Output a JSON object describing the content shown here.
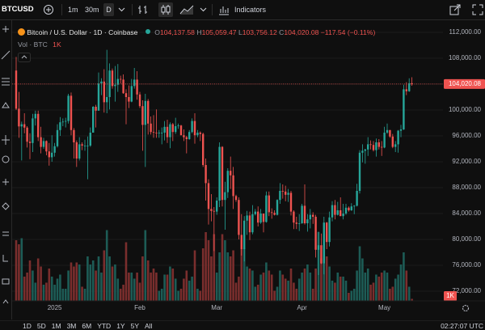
{
  "ui": {
    "symbol": "BTCUSD",
    "intervals": [
      "1m",
      "30m",
      "D"
    ],
    "indicators": "Indicators",
    "ranges": [
      "1D",
      "5D",
      "1M",
      "3M",
      "6M",
      "YTD",
      "1Y",
      "5Y",
      "All"
    ],
    "clock": "02:27:07 UTC"
  },
  "chart_data": {
    "type": "candlestick",
    "ohlc_prefixes": [
      "O",
      "H",
      "L",
      "C"
    ],
    "last_labels": {
      "open": "104,137.58",
      "high": "105,059.47",
      "low": "103,756.12",
      "close": "104,020.08"
    },
    "change": {
      "value": -117.54,
      "label": "−117.54"
    },
    "change_percent": {
      "value": -0.11,
      "label": "(−0.11%)"
    },
    "grid": true,
    "ylim": [
      70500,
      113250
    ],
    "yticks": [
      {
        "value": 72000,
        "label": "72,000.00"
      },
      {
        "value": 76000,
        "label": "76,000.00"
      },
      {
        "value": 80000,
        "label": "80,000.00"
      },
      {
        "value": 84000,
        "label": "84,000.00"
      },
      {
        "value": 88000,
        "label": "88,000.00"
      },
      {
        "value": 92000,
        "label": "92,000.00"
      },
      {
        "value": 96000,
        "label": "96,000.00"
      },
      {
        "value": 100000,
        "label": "100,000.00"
      },
      {
        "value": 104000,
        "label": "104,000.00"
      },
      {
        "value": 108000,
        "label": "108,000.00"
      },
      {
        "value": 112000,
        "label": "112,000.00"
      }
    ],
    "y2lim": [
      0,
      40000
    ],
    "categories": [
      null,
      null,
      null,
      null,
      null,
      null,
      null,
      null,
      null,
      null,
      null,
      null,
      null,
      null,
      "2025",
      null,
      null,
      null,
      null,
      null,
      null,
      null,
      null,
      null,
      null,
      null,
      null,
      null,
      null,
      null,
      null,
      null,
      null,
      null,
      null,
      null,
      null,
      null,
      null,
      null,
      null,
      null,
      null,
      null,
      null,
      "Feb",
      null,
      null,
      null,
      null,
      null,
      null,
      null,
      null,
      null,
      null,
      null,
      null,
      null,
      null,
      null,
      null,
      null,
      null,
      null,
      null,
      null,
      null,
      null,
      null,
      null,
      null,
      null,
      "Mar",
      null,
      null,
      null,
      null,
      null,
      null,
      null,
      null,
      null,
      null,
      null,
      null,
      null,
      null,
      null,
      null,
      null,
      null,
      null,
      null,
      null,
      null,
      null,
      null,
      null,
      null,
      null,
      null,
      null,
      null,
      "Apr",
      null,
      null,
      null,
      null,
      null,
      null,
      null,
      null,
      null,
      null,
      null,
      null,
      null,
      null,
      null,
      null,
      null,
      null,
      null,
      null,
      null,
      null,
      null,
      null,
      null,
      null,
      null,
      null,
      null,
      "May",
      null,
      null,
      null,
      null,
      null,
      null,
      null,
      null,
      null,
      null
    ],
    "series": [
      {
        "name": "Bitcoin / U.S. Dollar · 1D · Coinbase",
        "up_color": "#26a69a",
        "down_color": "#ef5350",
        "open": [
          106100,
          100200,
          97460,
          97800,
          97280,
          95100,
          94900,
          98700,
          99400,
          95800,
          94300,
          95200,
          93600,
          92700,
          93400,
          94400,
          96900,
          98100,
          98200,
          98300,
          102200,
          96900,
          95000,
          92500,
          94700,
          94500,
          94500,
          94500,
          96500,
          100500,
          99900,
          104100,
          104400,
          101200,
          102000,
          106100,
          103700,
          103900,
          104800,
          104700,
          102600,
          102000,
          101300,
          103700,
          104700,
          102400,
          100600,
          97700,
          101400,
          97900,
          96600,
          96500,
          96400,
          96500,
          96500,
          97400,
          95800,
          97800,
          96600,
          97500,
          97600,
          96100,
          95800,
          95500,
          96600,
          98300,
          96100,
          96500,
          96300,
          91500,
          88700,
          84700,
          84400,
          84300,
          86000,
          94300,
          86100,
          87300,
          90600,
          89900,
          86700,
          86100,
          80700,
          78500,
          82900,
          83700,
          81100,
          83900,
          84300,
          82600,
          84000,
          82700,
          86800,
          84200,
          84100,
          83800,
          86100,
          87500,
          87400,
          86900,
          87200,
          84300,
          82600,
          82400,
          82500,
          85200,
          82500,
          83100,
          83800,
          83500,
          78400,
          79100,
          76300,
          82600,
          79600,
          83400,
          85300,
          83800,
          84500,
          83600,
          84000,
          84900,
          84500,
          85100,
          85200,
          87500,
          93400,
          93700,
          93900,
          94700,
          94600,
          93800,
          95000,
          94300,
          94200,
          96500,
          96900,
          95900,
          94300,
          94700,
          96800,
          97000,
          103200,
          102900,
          104137.58
        ],
        "high": [
          108200,
          102800,
          98200,
          99500,
          97500,
          96400,
          99400,
          99900,
          99900,
          97400,
          95700,
          95300,
          94900,
          96100,
          94900,
          97800,
          98900,
          98700,
          98800,
          102500,
          102700,
          97200,
          95300,
          95800,
          95000,
          95400,
          95900,
          97300,
          100600,
          100800,
          105800,
          104900,
          106300,
          109300,
          107200,
          106400,
          106800,
          107100,
          105300,
          105500,
          103200,
          103800,
          104800,
          106500,
          106000,
          102800,
          101500,
          102500,
          101700,
          99000,
          99200,
          100100,
          96900,
          97300,
          98300,
          98500,
          98100,
          98000,
          98800,
          97900,
          97700,
          97000,
          96000,
          96900,
          98700,
          99500,
          96900,
          96700,
          96500,
          92500,
          89300,
          87000,
          85000,
          86500,
          95000,
          94400,
          88900,
          91000,
          92800,
          91200,
          86900,
          86500,
          83900,
          83600,
          84400,
          84300,
          85300,
          84700,
          85100,
          84700,
          84000,
          87400,
          87400,
          84800,
          84500,
          86200,
          88700,
          88500,
          88300,
          87800,
          87500,
          84500,
          83500,
          83900,
          85500,
          88500,
          83900,
          84700,
          84200,
          83800,
          81200,
          80900,
          83500,
          82700,
          84300,
          85900,
          86100,
          85800,
          86500,
          85500,
          85500,
          85100,
          85600,
          85300,
          88600,
          93800,
          94700,
          94000,
          95800,
          95300,
          95200,
          95600,
          95500,
          95200,
          97400,
          97900,
          96900,
          96300,
          95200,
          96900,
          97700,
          103900,
          104300,
          104900,
          105059.47
        ],
        "low": [
          100000,
          95700,
          92200,
          96400,
          94200,
          92400,
          93500,
          97600,
          95200,
          93300,
          94000,
          93000,
          91400,
          92000,
          92800,
          94200,
          96000,
          97500,
          97300,
          97900,
          96100,
          92500,
          91200,
          92200,
          93800,
          93700,
          89300,
          94300,
          96500,
          97300,
          99900,
          102300,
          99600,
          99500,
          100100,
          103300,
          101300,
          102800,
          104100,
          102500,
          97800,
          100300,
          101200,
          103300,
          101600,
          100300,
          93700,
          91200,
          96200,
          96200,
          95700,
          95700,
          95700,
          94700,
          95300,
          94900,
          94100,
          95200,
          96300,
          97100,
          96100,
          95200,
          93300,
          95400,
          96400,
          94800,
          95800,
          95200,
          91200,
          86000,
          82300,
          82800,
          78200,
          83800,
          85000,
          85100,
          81500,
          86400,
          87800,
          84700,
          85800,
          80000,
          77500,
          76600,
          80700,
          79900,
          80800,
          83700,
          82000,
          82400,
          81100,
          82600,
          83600,
          83200,
          83700,
          83700,
          85500,
          86300,
          85900,
          85800,
          83700,
          81600,
          81600,
          81300,
          82400,
          82300,
          81200,
          81700,
          82400,
          77200,
          74500,
          76200,
          74600,
          78500,
          78900,
          82800,
          83100,
          83700,
          83600,
          83100,
          83800,
          84300,
          84400,
          83900,
          85100,
          87100,
          91900,
          91700,
          92900,
          93900,
          93600,
          92800,
          93900,
          92900,
          94100,
          96300,
          95700,
          94100,
          93500,
          93400,
          95800,
          96900,
          102300,
          102800,
          103756.12
        ],
        "close": [
          100200,
          97460,
          97800,
          97280,
          95100,
          94900,
          98700,
          99400,
          95800,
          94300,
          95200,
          93600,
          92700,
          93400,
          94400,
          96900,
          98100,
          98200,
          98300,
          102200,
          96900,
          95000,
          92500,
          94700,
          94500,
          94500,
          94500,
          96500,
          100500,
          99900,
          104100,
          104400,
          101200,
          102000,
          106100,
          103700,
          103900,
          104800,
          104700,
          102600,
          102000,
          101300,
          103700,
          104700,
          102400,
          100600,
          97700,
          101400,
          97900,
          96600,
          96500,
          96400,
          96500,
          96500,
          97400,
          95800,
          97800,
          96600,
          97500,
          97600,
          96100,
          95800,
          95500,
          96600,
          98300,
          96100,
          96500,
          96300,
          91500,
          88700,
          84700,
          84400,
          84300,
          86000,
          94300,
          86100,
          87300,
          90600,
          89900,
          86700,
          86100,
          80700,
          78500,
          82900,
          83700,
          81100,
          83900,
          84300,
          82600,
          84000,
          82700,
          86800,
          84200,
          84100,
          83800,
          86100,
          87500,
          87400,
          86900,
          87200,
          84300,
          82600,
          82400,
          82500,
          85200,
          82500,
          83100,
          83800,
          83500,
          78400,
          79100,
          76300,
          82600,
          79600,
          83400,
          85300,
          83800,
          84500,
          83600,
          84000,
          84900,
          84500,
          85100,
          85200,
          87500,
          93400,
          93700,
          93900,
          94700,
          94600,
          93800,
          95000,
          94300,
          94200,
          96500,
          96900,
          95900,
          94300,
          94700,
          96800,
          97000,
          103200,
          102900,
          104137.62,
          104020.08
        ]
      },
      {
        "name": "Vol · BTC",
        "axis": "y2",
        "up_color": "#1d5c56",
        "down_color": "#7a2e2d",
        "values": [
          30000,
          28000,
          31000,
          12000,
          14000,
          20000,
          15000,
          9000,
          21000,
          17000,
          8000,
          9000,
          16000,
          12000,
          8000,
          11000,
          13000,
          6000,
          6000,
          15000,
          19000,
          17000,
          19000,
          18000,
          7000,
          6000,
          22000,
          18000,
          20000,
          15000,
          22000,
          14000,
          25000,
          35000,
          22000,
          17000,
          18000,
          11000,
          6000,
          8000,
          29000,
          14000,
          14000,
          11000,
          14000,
          9000,
          22000,
          35000,
          20000,
          14000,
          16000,
          14000,
          5000,
          6000,
          13000,
          13000,
          17000,
          16000,
          11000,
          5000,
          6000,
          11000,
          15000,
          10000,
          12000,
          25000,
          6000,
          5000,
          26000,
          34000,
          30000,
          22000,
          33000,
          14000,
          24000,
          33000,
          30000,
          24000,
          22000,
          25000,
          9000,
          12000,
          30000,
          26000,
          17000,
          16000,
          15000,
          7000,
          8000,
          13000,
          14000,
          19000,
          15000,
          13000,
          5000,
          7000,
          15000,
          13000,
          11000,
          10000,
          16000,
          9000,
          6000,
          11000,
          14000,
          16000,
          18000,
          14000,
          6000,
          16000,
          34000,
          21000,
          33000,
          22000,
          17000,
          10000,
          9000,
          14000,
          12000,
          12000,
          10000,
          4000,
          5000,
          6000,
          15000,
          27000,
          21000,
          14000,
          16000,
          8000,
          9000,
          13000,
          12000,
          14000,
          15000,
          14000,
          6000,
          7000,
          11000,
          13000,
          18000,
          24000,
          15000,
          7000,
          1000
        ],
        "value_labels": [
          null,
          null,
          null,
          null,
          null,
          null,
          null,
          null,
          null,
          null,
          null,
          null,
          null,
          null,
          null,
          null,
          null,
          null,
          null,
          null,
          null,
          null,
          null,
          null,
          null,
          null,
          null,
          null,
          null,
          null,
          null,
          null,
          null,
          null,
          null,
          null,
          null,
          null,
          null,
          null,
          null,
          null,
          null,
          null,
          null,
          null,
          null,
          null,
          null,
          null,
          null,
          null,
          null,
          null,
          null,
          null,
          null,
          null,
          null,
          null,
          null,
          null,
          null,
          null,
          null,
          null,
          null,
          null,
          null,
          null,
          null,
          null,
          null,
          null,
          null,
          null,
          null,
          null,
          null,
          null,
          null,
          null,
          null,
          null,
          null,
          null,
          null,
          null,
          null,
          null,
          null,
          null,
          null,
          null,
          null,
          null,
          null,
          null,
          null,
          null,
          null,
          null,
          null,
          null,
          null,
          null,
          null,
          null,
          null,
          null,
          null,
          null,
          null,
          null,
          null,
          null,
          null,
          null,
          null,
          null,
          null,
          null,
          null,
          null,
          null,
          null,
          null,
          null,
          null,
          null,
          null,
          null,
          null,
          null,
          null,
          null,
          null,
          null,
          null,
          null,
          null,
          null,
          null,
          null,
          "1K"
        ]
      }
    ]
  }
}
